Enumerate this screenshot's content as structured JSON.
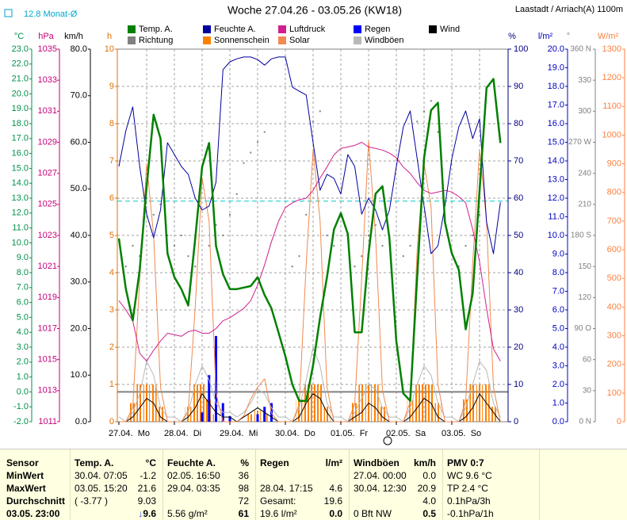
{
  "chart_data": {
    "type": "line",
    "title": "Woche 27.04.26 - 03.05.26 (KW18)",
    "location": "Laastadt / Arriach(A) 1100m",
    "reference": {
      "label": "12.8 Monat-Ø",
      "value": 12.8,
      "axis": "°C",
      "color": "#00c8c8"
    },
    "grid": "h",
    "categories": [
      "27.04.  Mo",
      null,
      null,
      null,
      null,
      null,
      null,
      null,
      "28.04.  Di",
      null,
      null,
      null,
      null,
      null,
      null,
      null,
      "29.04.  Mi",
      null,
      null,
      null,
      null,
      null,
      null,
      null,
      "30.04.  Do",
      null,
      null,
      null,
      null,
      null,
      null,
      null,
      "01.05.  Fr",
      null,
      null,
      null,
      null,
      null,
      null,
      null,
      "02.05.  Sa",
      null,
      null,
      null,
      null,
      null,
      null,
      null,
      "03.05.  So",
      null,
      null,
      null,
      null,
      null,
      null,
      null
    ],
    "axes": [
      {
        "unit": "°C",
        "color": "#00904a",
        "lim": [
          -2,
          23
        ],
        "ticks": [
          {
            "value": -2,
            "label": "-2.0"
          },
          {
            "value": -1,
            "label": "-1.0"
          },
          {
            "value": 0,
            "label": "0.0"
          },
          {
            "value": 1,
            "label": "1.0"
          },
          {
            "value": 2,
            "label": "2.0"
          },
          {
            "value": 3,
            "label": "3.0"
          },
          {
            "value": 4,
            "label": "4.0"
          },
          {
            "value": 5,
            "label": "5.0"
          },
          {
            "value": 6,
            "label": "6.0"
          },
          {
            "value": 7,
            "label": "7.0"
          },
          {
            "value": 8,
            "label": "8.0"
          },
          {
            "value": 9,
            "label": "9.0"
          },
          {
            "value": 10,
            "label": "10.0"
          },
          {
            "value": 11,
            "label": "11.0"
          },
          {
            "value": 12,
            "label": "12.0"
          },
          {
            "value": 13,
            "label": "13.0"
          },
          {
            "value": 14,
            "label": "14.0"
          },
          {
            "value": 15,
            "label": "15.0"
          },
          {
            "value": 16,
            "label": "16.0"
          },
          {
            "value": 17,
            "label": "17.0"
          },
          {
            "value": 18,
            "label": "18.0"
          },
          {
            "value": 19,
            "label": "19.0"
          },
          {
            "value": 20,
            "label": "20.0"
          },
          {
            "value": 21,
            "label": "21.0"
          },
          {
            "value": 22,
            "label": "22.0"
          },
          {
            "value": 23,
            "label": "23.0"
          }
        ]
      },
      {
        "unit": "hPa",
        "color": "#c8007a",
        "lim": [
          1011,
          1035
        ],
        "ticks": [
          1011,
          1013,
          1015,
          1017,
          1019,
          1021,
          1023,
          1025,
          1027,
          1029,
          1031,
          1033,
          1035
        ]
      },
      {
        "unit": "km/h",
        "color": "#000000",
        "lim": [
          0,
          80
        ],
        "ticks": [
          {
            "value": 0,
            "label": "0.0"
          },
          {
            "value": 10,
            "label": "10.0"
          },
          {
            "value": 20,
            "label": "20.0"
          },
          {
            "value": 30,
            "label": "30.0"
          },
          {
            "value": 40,
            "label": "40.0"
          },
          {
            "value": 50,
            "label": "50.0"
          },
          {
            "value": 60,
            "label": "60.0"
          },
          {
            "value": 70,
            "label": "70.0"
          },
          {
            "value": 80,
            "label": "80.0"
          }
        ]
      },
      {
        "unit": "h",
        "color": "#e07000",
        "lim": [
          0,
          10
        ],
        "ticks": [
          0,
          1,
          2,
          3,
          4,
          5,
          6,
          7,
          8,
          9,
          10
        ]
      },
      {
        "unit": "%",
        "color": "#000080",
        "lim": [
          0,
          100
        ],
        "ticks": [
          0,
          10,
          20,
          30,
          40,
          50,
          60,
          70,
          80,
          90,
          100
        ]
      },
      {
        "unit": "l/m²",
        "color": "#0000c0",
        "lim": [
          0,
          20
        ],
        "ticks": [
          {
            "value": 0,
            "label": "0.0"
          },
          {
            "value": 1,
            "label": "1.0"
          },
          {
            "value": 2,
            "label": "2.0"
          },
          {
            "value": 3,
            "label": "3.0"
          },
          {
            "value": 4,
            "label": "4.0"
          },
          {
            "value": 5,
            "label": "5.0"
          },
          {
            "value": 6,
            "label": "6.0"
          },
          {
            "value": 7,
            "label": "7.0"
          },
          {
            "value": 8,
            "label": "8.0"
          },
          {
            "value": 9,
            "label": "9.0"
          },
          {
            "value": 10,
            "label": "10.0"
          },
          {
            "value": 11,
            "label": "11.0"
          },
          {
            "value": 12,
            "label": "12.0"
          },
          {
            "value": 13,
            "label": "13.0"
          },
          {
            "value": 14,
            "label": "14.0"
          },
          {
            "value": 15,
            "label": "15.0"
          },
          {
            "value": 16,
            "label": "16.0"
          },
          {
            "value": 17,
            "label": "17.0"
          },
          {
            "value": 18,
            "label": "18.0"
          },
          {
            "value": 19,
            "label": "19.0"
          },
          {
            "value": 20,
            "label": "20.0"
          }
        ]
      },
      {
        "unit": "°",
        "color": "#808080",
        "lim": [
          0,
          360
        ],
        "ticks": [
          {
            "value": 0,
            "label": "0 N"
          },
          30,
          60,
          {
            "value": 90,
            "label": "90 O"
          },
          120,
          150,
          {
            "value": 180,
            "label": "180 S"
          },
          210,
          240,
          {
            "value": 270,
            "label": "270 W"
          },
          300,
          330,
          {
            "value": 360,
            "label": "360 N"
          }
        ]
      },
      {
        "unit": "W/m²",
        "color": "#ff8040",
        "lim": [
          0,
          1300
        ],
        "ticks": [
          0,
          100,
          200,
          300,
          400,
          500,
          600,
          700,
          800,
          900,
          1000,
          1100,
          1200,
          1300
        ]
      }
    ],
    "series": [
      {
        "name": "Temp. A.",
        "type": "line",
        "axis": "°C",
        "color": "#008000",
        "values": [
          10.3,
          6.9,
          4.8,
          8.2,
          13.8,
          18.6,
          17.0,
          9.3,
          7.7,
          6.9,
          5.8,
          10.3,
          15.1,
          16.7,
          9.8,
          7.9,
          6.9,
          6.9,
          7.0,
          7.1,
          7.7,
          6.5,
          5.6,
          4.0,
          2.4,
          0.5,
          -0.6,
          -0.6,
          1.8,
          5.0,
          7.7,
          10.9,
          12.0,
          10.6,
          4.0,
          4.0,
          9.3,
          13.3,
          13.8,
          10.3,
          3.4,
          -0.1,
          -0.6,
          7.7,
          15.7,
          18.9,
          19.4,
          11.4,
          9.3,
          8.2,
          4.2,
          6.6,
          13.5,
          20.4,
          21.0,
          16.7
        ]
      },
      {
        "name": "Richtung",
        "type": "dots",
        "axis": "°",
        "color": "#808080",
        "values": [
          null,
          150,
          170,
          160,
          null,
          200,
          210,
          180,
          170,
          180,
          160,
          150,
          null,
          170,
          190,
          180,
          200,
          220,
          250,
          260,
          270,
          280,
          null,
          null,
          null,
          150,
          160,
          200,
          290,
          300,
          180,
          170,
          null,
          null,
          150,
          160,
          180,
          190,
          170,
          null,
          null,
          160,
          170,
          290,
          300,
          310,
          280,
          null,
          null,
          150,
          170,
          180,
          200,
          null,
          null,
          null
        ]
      },
      {
        "name": "Feuchte A.",
        "type": "line",
        "axis": "%",
        "color": "#0000a0",
        "values": [
          68.5,
          78.1,
          84.5,
          68.5,
          55.7,
          49.4,
          56.8,
          74.9,
          71.7,
          68.5,
          66.4,
          60.0,
          56.8,
          57.9,
          64.3,
          94.5,
          96.6,
          97.4,
          97.9,
          97.9,
          97.2,
          95.7,
          97.4,
          97.9,
          97.9,
          89.8,
          88.7,
          87.7,
          74.9,
          62.1,
          66.4,
          65.3,
          61.1,
          71.7,
          68.5,
          55.7,
          60.0,
          56.8,
          51.5,
          56.8,
          68.5,
          79.1,
          83.4,
          70.6,
          57.9,
          45.1,
          47.2,
          57.9,
          70.6,
          79.1,
          83.4,
          76.0,
          81.3,
          53.6,
          45.1,
          58.9
        ]
      },
      {
        "name": "Sonnenschein",
        "type": "bar",
        "axis": "h",
        "color": "#ff8000",
        "values": [
          0,
          0,
          0.5,
          1,
          1,
          1,
          0.4,
          0,
          0,
          0,
          0.4,
          1,
          1,
          0.6,
          0.2,
          0,
          0,
          0,
          0,
          0.2,
          0.3,
          0.2,
          0,
          0,
          0,
          0,
          0.6,
          1,
          1,
          1,
          0.4,
          0,
          0,
          0,
          0.5,
          1,
          1,
          1,
          0.4,
          0,
          0,
          0,
          0.6,
          1,
          1,
          1,
          0.5,
          0,
          0,
          0,
          0.6,
          1,
          1,
          1,
          0.4,
          0
        ]
      },
      {
        "name": "Luftdruck",
        "type": "line",
        "axis": "hPa",
        "color": "#d0208f",
        "values": [
          1018.8,
          1018.2,
          1017.5,
          1015.4,
          1014.9,
          1015.6,
          1016.2,
          1016.7,
          1016.6,
          1016.5,
          1016.8,
          1016.9,
          1016.7,
          1016.7,
          1017.0,
          1017.5,
          1017.7,
          1018.0,
          1018.3,
          1018.8,
          1019.8,
          1021.1,
          1022.6,
          1023.9,
          1024.8,
          1025.1,
          1025.3,
          1025.4,
          1025.9,
          1026.7,
          1027.4,
          1028.2,
          1028.6,
          1028.7,
          1028.8,
          1029.0,
          1028.7,
          1028.6,
          1028.5,
          1028.3,
          1028.0,
          1027.4,
          1027.0,
          1026.4,
          1025.9,
          1025.7,
          1025.8,
          1025.9,
          1025.8,
          1025.5,
          1025.1,
          1023.4,
          1021.3,
          1018.3,
          1015.7,
          1014.9
        ]
      },
      {
        "name": "Solar",
        "type": "line",
        "axis": "W/m²",
        "color": "#f08a50",
        "values": [
          0,
          0,
          50,
          500,
          900,
          650,
          120,
          0,
          0,
          0,
          40,
          400,
          850,
          700,
          100,
          0,
          0,
          0,
          20,
          80,
          120,
          150,
          30,
          0,
          0,
          0,
          60,
          550,
          950,
          700,
          120,
          0,
          0,
          0,
          60,
          500,
          980,
          650,
          110,
          0,
          0,
          0,
          70,
          600,
          900,
          750,
          130,
          0,
          0,
          0,
          70,
          550,
          950,
          700,
          120,
          0
        ]
      },
      {
        "name": "Regen",
        "type": "bar",
        "axis": "l/m²",
        "color": "#0000ff",
        "values": [
          0,
          0,
          0,
          0,
          0,
          0,
          0,
          0,
          0,
          0,
          0,
          0,
          0.5,
          2.5,
          4.6,
          1.0,
          0.3,
          0,
          0,
          0,
          0.4,
          0.8,
          1.0,
          0,
          0,
          0,
          0,
          0,
          0,
          0,
          0,
          0,
          0,
          0,
          0,
          0,
          0,
          0,
          0,
          0,
          0,
          0,
          0,
          0,
          0,
          0,
          0,
          0,
          0,
          0,
          0,
          0,
          0,
          0,
          0,
          0
        ]
      },
      {
        "name": "Windböen",
        "type": "line",
        "axis": "km/h",
        "color": "#b8b8b8",
        "values": [
          1,
          0,
          2,
          6,
          13,
          10,
          3,
          1,
          1,
          0,
          2,
          8,
          12,
          9,
          4,
          2,
          2,
          1,
          2,
          4,
          7,
          6,
          3,
          1,
          1,
          0,
          3,
          9,
          16,
          12,
          4,
          1,
          1,
          0,
          2,
          5,
          8,
          7,
          3,
          1,
          1,
          0,
          3,
          8,
          12,
          10,
          4,
          1,
          1,
          0,
          3,
          8,
          13,
          11,
          4,
          1
        ]
      },
      {
        "name": "Wind",
        "type": "line",
        "axis": "km/h",
        "color": "#000000",
        "values": [
          0,
          0,
          1,
          3,
          5,
          4,
          1,
          0,
          0,
          0,
          1,
          3,
          6,
          4,
          2,
          1,
          1,
          0,
          1,
          2,
          3,
          2,
          1,
          0,
          0,
          0,
          1,
          4,
          6,
          5,
          2,
          0,
          0,
          0,
          1,
          2,
          4,
          3,
          1,
          0,
          0,
          0,
          1,
          3,
          5,
          4,
          1,
          0,
          0,
          0,
          1,
          3,
          6,
          4,
          2,
          0
        ]
      }
    ]
  },
  "table": {
    "row_labels": [
      "Sensor",
      "MinWert",
      "MaxWert",
      "Durchschnitt",
      "03.05. 23:00"
    ],
    "sections": [
      {
        "title": "Temp. A.",
        "unit": "°C",
        "rows": [
          [
            "30.04. 07:05",
            "-1.2"
          ],
          [
            "03.05. 15:20",
            "21.6"
          ],
          [
            "( -3.77 )",
            "9.03"
          ],
          [
            null,
            "↓9.6"
          ]
        ]
      },
      {
        "title": "Feuchte A.",
        "unit": "%",
        "rows": [
          [
            "02.05. 16:50",
            "36"
          ],
          [
            "29.04. 03:35",
            "98"
          ],
          [
            null,
            "72"
          ],
          [
            "5.56 g/m²",
            "61"
          ]
        ]
      },
      {
        "title": "Regen",
        "unit": "l/m²",
        "rows": [
          [],
          [
            "28.04. 17:15",
            "4.6"
          ],
          [
            "Gesamt:",
            "19.6"
          ],
          [
            "19.6 l/m²",
            "0.0"
          ]
        ]
      },
      {
        "title": "Windböen",
        "unit": "km/h",
        "rows": [
          [
            "27.04. 00:00",
            "0.0"
          ],
          [
            "30.04. 12:30",
            "20.9"
          ],
          [
            null,
            "4.0"
          ],
          [
            "0 Bft NW",
            "0.5"
          ]
        ]
      },
      {
        "title": "PMV 0:7",
        "rows": [
          [
            "WC 9.6 °C"
          ],
          [
            "TP 2.4 °C"
          ],
          [
            "0.1hPa/3h"
          ],
          [
            "-0.1hPa/1h"
          ]
        ]
      }
    ]
  }
}
